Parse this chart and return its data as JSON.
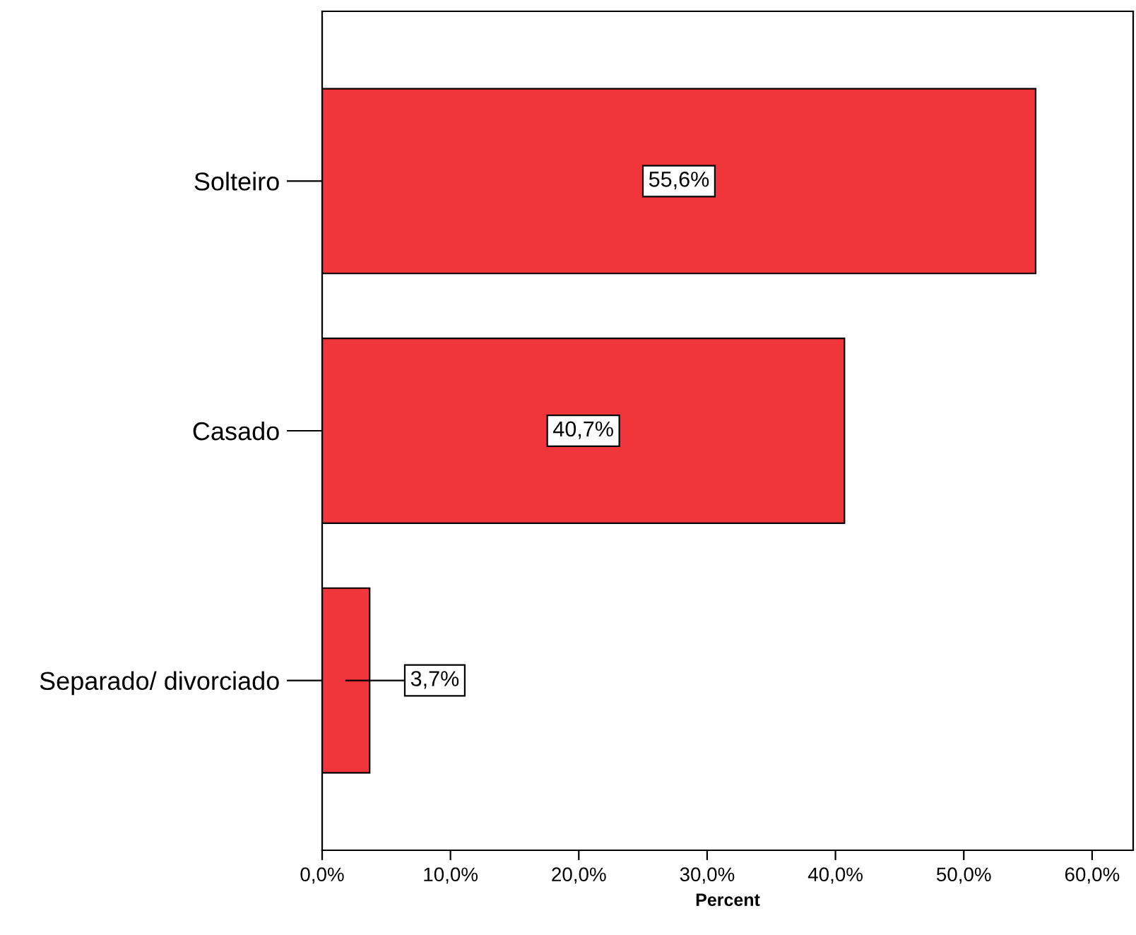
{
  "chart_data": {
    "type": "bar",
    "orientation": "horizontal",
    "categories": [
      "Solteiro",
      "Casado",
      "Separado/ divorciado"
    ],
    "values": [
      55.6,
      40.7,
      3.7
    ],
    "color": "#f0353b",
    "value_labels": [
      "55,6%",
      "40,7%",
      "3,7%"
    ],
    "xlabel": "Percent",
    "xlim": [
      0,
      63.2
    ],
    "xticks": [
      {
        "value": 0,
        "label": "0,0%"
      },
      {
        "value": 10,
        "label": "10,0%"
      },
      {
        "value": 20,
        "label": "20,0%"
      },
      {
        "value": 30,
        "label": "30,0%"
      },
      {
        "value": 40,
        "label": "40,0%"
      },
      {
        "value": 50,
        "label": "50,0%"
      },
      {
        "value": 60,
        "label": "60,0%"
      }
    ],
    "grid": false,
    "legend": false
  }
}
